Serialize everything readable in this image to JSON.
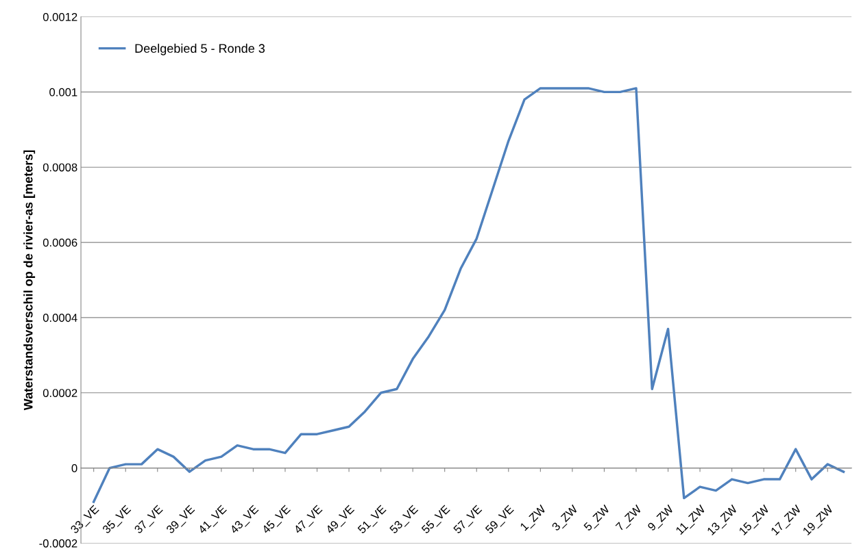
{
  "chart_data": {
    "type": "line",
    "ylabel": "Waterstandsverschil op de rivier-as [meters]",
    "categories": [
      "33_VE",
      null,
      "35_VE",
      null,
      "37_VE",
      null,
      "39_VE",
      null,
      "41_VE",
      null,
      "43_VE",
      null,
      "45_VE",
      null,
      "47_VE",
      null,
      "49_VE",
      null,
      "51_VE",
      null,
      "53_VE",
      null,
      "55_VE",
      null,
      "57_VE",
      null,
      "59_VE",
      null,
      "1_ZW",
      null,
      "3_ZW",
      null,
      "5_ZW",
      null,
      "7_ZW",
      null,
      "9_ZW",
      null,
      "11_ZW",
      null,
      "13_ZW",
      null,
      "15_ZW",
      null,
      "17_ZW",
      null,
      "19_ZW",
      null
    ],
    "series": [
      {
        "name": "Deelgebied 5 - Ronde 3",
        "color": "#4f81bd",
        "values": [
          -9e-05,
          0,
          1e-05,
          1e-05,
          5e-05,
          3e-05,
          -1e-05,
          2e-05,
          3e-05,
          6e-05,
          5e-05,
          5e-05,
          4e-05,
          9e-05,
          9e-05,
          0.0001,
          0.00011,
          0.00015,
          0.0002,
          0.00021,
          0.00029,
          0.00035,
          0.00042,
          0.00053,
          0.00061,
          0.00074,
          0.00087,
          0.00098,
          0.00101,
          0.00101,
          0.00101,
          0.00101,
          0.001,
          0.001,
          0.00101,
          0.00021,
          0.00037,
          -8e-05,
          -5e-05,
          -6e-05,
          -3e-05,
          -4e-05,
          -3e-05,
          -3e-05,
          5e-05,
          -3e-05,
          1e-05,
          -1e-05
        ]
      }
    ],
    "ylim": [
      -0.0002,
      0.0012
    ],
    "yticks": [
      {
        "value": -0.0002,
        "label": "-0.0002"
      },
      {
        "value": 0,
        "label": "0"
      },
      {
        "value": 0.0002,
        "label": "0.0002"
      },
      {
        "value": 0.0004,
        "label": "0.0004"
      },
      {
        "value": 0.0006,
        "label": "0.0006"
      },
      {
        "value": 0.0008,
        "label": "0.0008"
      },
      {
        "value": 0.001,
        "label": "0.001"
      },
      {
        "value": 0.0012,
        "label": "0.0012"
      }
    ],
    "grid": "y",
    "legend": "top left",
    "marker": "none",
    "line_style": "solid"
  }
}
